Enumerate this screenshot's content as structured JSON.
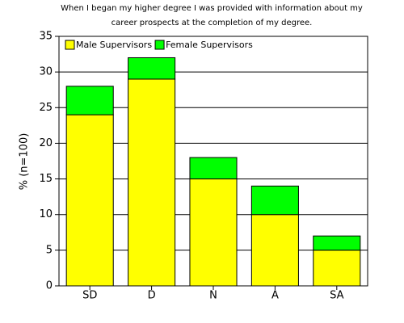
{
  "chart_data": {
    "type": "stacked_bar",
    "title": [
      "When I began my higher degree I was provided with information about my",
      "career prospects at the completion of my degree."
    ],
    "y_label": "% (n=100)",
    "categories": [
      "SD",
      "D",
      "N",
      "A",
      "SA"
    ],
    "series": [
      {
        "name": "Male Supervisors",
        "color": "#ffff00",
        "values": [
          24,
          29,
          15,
          10,
          5
        ]
      },
      {
        "name": "Female Supervisors",
        "color": "#00ff00",
        "values": [
          4,
          3,
          3,
          4,
          2
        ]
      }
    ],
    "ylim": [
      0,
      35
    ],
    "yticks": [
      0,
      5,
      10,
      15,
      20,
      25,
      30,
      35
    ],
    "grid": true,
    "legend": "top-left"
  }
}
